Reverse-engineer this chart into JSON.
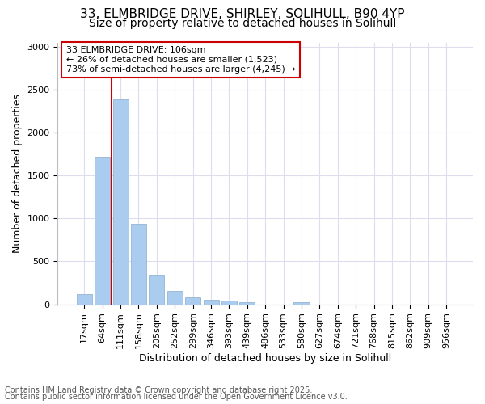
{
  "title_line1": "33, ELMBRIDGE DRIVE, SHIRLEY, SOLIHULL, B90 4YP",
  "title_line2": "Size of property relative to detached houses in Solihull",
  "xlabel": "Distribution of detached houses by size in Solihull",
  "ylabel": "Number of detached properties",
  "categories": [
    "17sqm",
    "64sqm",
    "111sqm",
    "158sqm",
    "205sqm",
    "252sqm",
    "299sqm",
    "346sqm",
    "393sqm",
    "439sqm",
    "486sqm",
    "533sqm",
    "580sqm",
    "627sqm",
    "674sqm",
    "721sqm",
    "768sqm",
    "815sqm",
    "862sqm",
    "909sqm",
    "956sqm"
  ],
  "values": [
    120,
    1720,
    2390,
    940,
    340,
    155,
    85,
    55,
    40,
    25,
    0,
    0,
    25,
    0,
    0,
    0,
    0,
    0,
    0,
    0,
    0
  ],
  "bar_color": "#aaccee",
  "bar_edge_color": "#88aacc",
  "vline_color": "#cc0000",
  "vline_x": 1.5,
  "ylim": [
    0,
    3050
  ],
  "yticks": [
    0,
    500,
    1000,
    1500,
    2000,
    2500,
    3000
  ],
  "annotation_text": "33 ELMBRIDGE DRIVE: 106sqm\n← 26% of detached houses are smaller (1,523)\n73% of semi-detached houses are larger (4,245) →",
  "annotation_box_edge": "#cc0000",
  "footer_line1": "Contains HM Land Registry data © Crown copyright and database right 2025.",
  "footer_line2": "Contains public sector information licensed under the Open Government Licence v3.0.",
  "background_color": "#ffffff",
  "plot_bg_color": "#ffffff",
  "grid_color": "#ddddee",
  "title_fontsize": 11,
  "subtitle_fontsize": 10,
  "axis_label_fontsize": 9,
  "tick_fontsize": 8,
  "annotation_fontsize": 8,
  "footer_fontsize": 7
}
